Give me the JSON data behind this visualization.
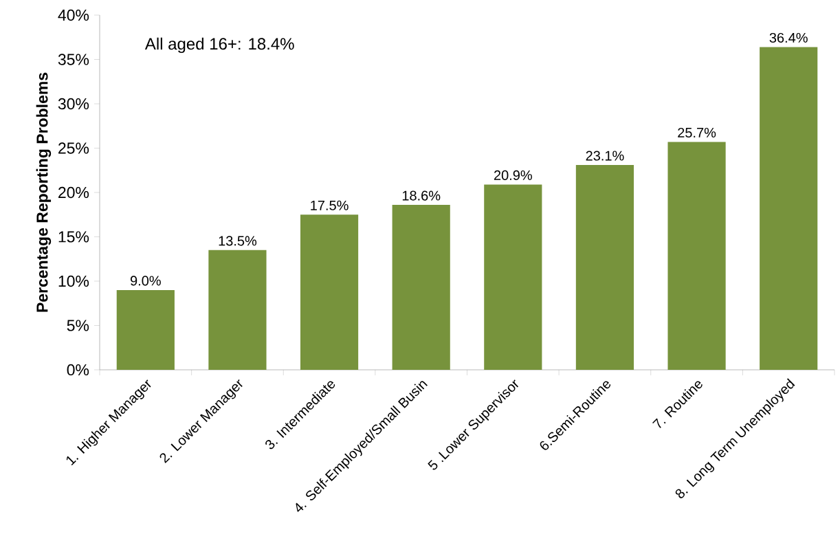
{
  "chart_data": {
    "type": "bar",
    "ylabel": "Percentage  Reporting  Problems",
    "categories": [
      "1. Higher Manager",
      "2. Lower Manager",
      "3. Intermediate",
      "4. Self-Employed/Small Busin",
      "5 .Lower Supervisor",
      "6.Semi-Routine",
      "7. Routine",
      "8. Long Term Unemployed"
    ],
    "values": [
      9.0,
      13.5,
      17.5,
      18.6,
      20.9,
      23.1,
      25.7,
      36.4
    ],
    "value_labels": [
      "9.0%",
      "13.5%",
      "17.5%",
      "18.6%",
      "20.9%",
      "23.1%",
      "25.7%",
      "36.4%"
    ],
    "color": "#77933c",
    "ylim": [
      0,
      40
    ],
    "yticks": [
      {
        "value": 0,
        "label": "0%"
      },
      {
        "value": 5,
        "label": "5%"
      },
      {
        "value": 10,
        "label": "10%"
      },
      {
        "value": 15,
        "label": "15%"
      },
      {
        "value": 20,
        "label": "20%"
      },
      {
        "value": 25,
        "label": "25%"
      },
      {
        "value": 30,
        "label": "30%"
      },
      {
        "value": 35,
        "label": "35%"
      },
      {
        "value": 40,
        "label": "40%"
      }
    ],
    "annotations": [
      "All aged 16+: 18.4%"
    ],
    "grid": false
  }
}
